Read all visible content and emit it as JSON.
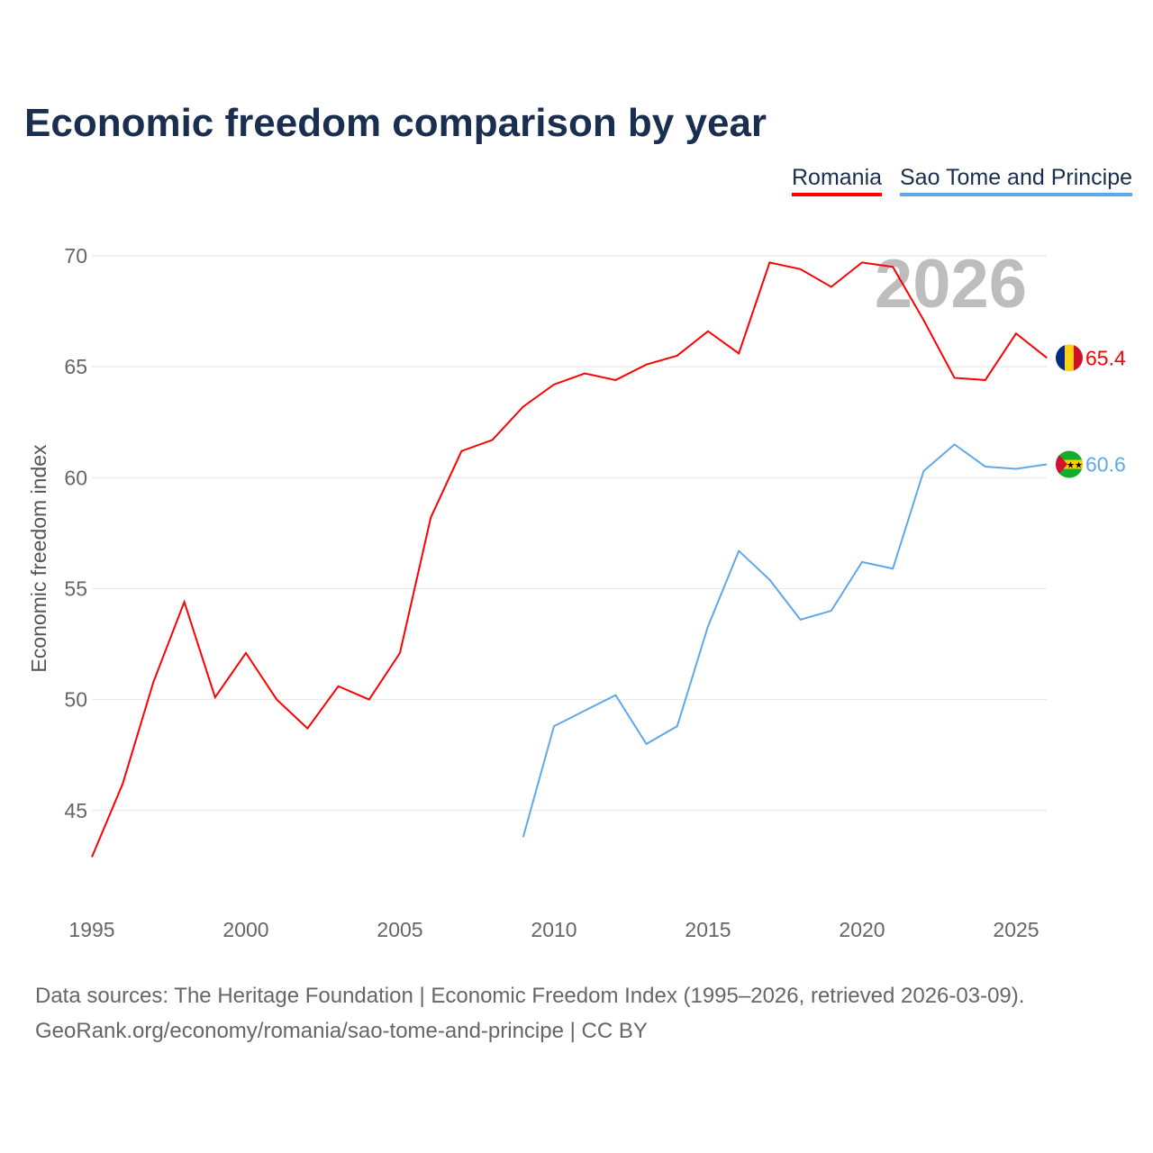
{
  "title": "Economic freedom comparison by year",
  "footer": {
    "line1": "Data sources: The Heritage Foundation | Economic Freedom Index (1995–2026, retrieved 2026-03-09).",
    "line2": "GeoRank.org/economy/romania/sao-tome-and-principe | CC BY"
  },
  "chart_data": {
    "type": "line",
    "title": "Economic freedom comparison by year",
    "ylabel": "Economic freedom index",
    "xlabel": "",
    "year_watermark": "2026",
    "ylim": [
      41,
      71.5
    ],
    "xlim": [
      1995,
      2026
    ],
    "yticks": [
      45,
      50,
      55,
      60,
      65,
      70
    ],
    "xticks": [
      1995,
      2000,
      2005,
      2010,
      2015,
      2020,
      2025
    ],
    "grid": true,
    "legend_position": "top-right",
    "series": [
      {
        "name": "Romania",
        "color": "#ff0000",
        "end_label": "65.4",
        "flag": "romania-flag",
        "x": [
          1995,
          1996,
          1997,
          1998,
          1999,
          2000,
          2001,
          2002,
          2003,
          2004,
          2005,
          2006,
          2007,
          2008,
          2009,
          2010,
          2011,
          2012,
          2013,
          2014,
          2015,
          2016,
          2017,
          2018,
          2019,
          2020,
          2021,
          2022,
          2023,
          2024,
          2025,
          2026
        ],
        "values": [
          42.9,
          46.2,
          50.8,
          54.4,
          50.1,
          52.1,
          50.0,
          48.7,
          50.6,
          50.0,
          52.1,
          58.2,
          61.2,
          61.7,
          63.2,
          64.2,
          64.7,
          64.4,
          65.1,
          65.5,
          66.6,
          65.6,
          69.7,
          69.4,
          68.6,
          69.7,
          69.5,
          67.1,
          64.5,
          64.4,
          66.5,
          65.4
        ]
      },
      {
        "name": "Sao Tome and Principe",
        "color": "#5fa8ea",
        "end_label": "60.6",
        "flag": "sao-tome-flag",
        "x": [
          2009,
          2010,
          2011,
          2012,
          2013,
          2014,
          2015,
          2016,
          2017,
          2018,
          2019,
          2020,
          2021,
          2022,
          2023,
          2024,
          2025,
          2026
        ],
        "values": [
          43.8,
          48.8,
          49.5,
          50.2,
          48.0,
          48.8,
          53.3,
          56.7,
          55.4,
          53.6,
          54.0,
          56.2,
          55.9,
          60.3,
          61.5,
          60.5,
          60.4,
          60.6
        ]
      }
    ]
  }
}
